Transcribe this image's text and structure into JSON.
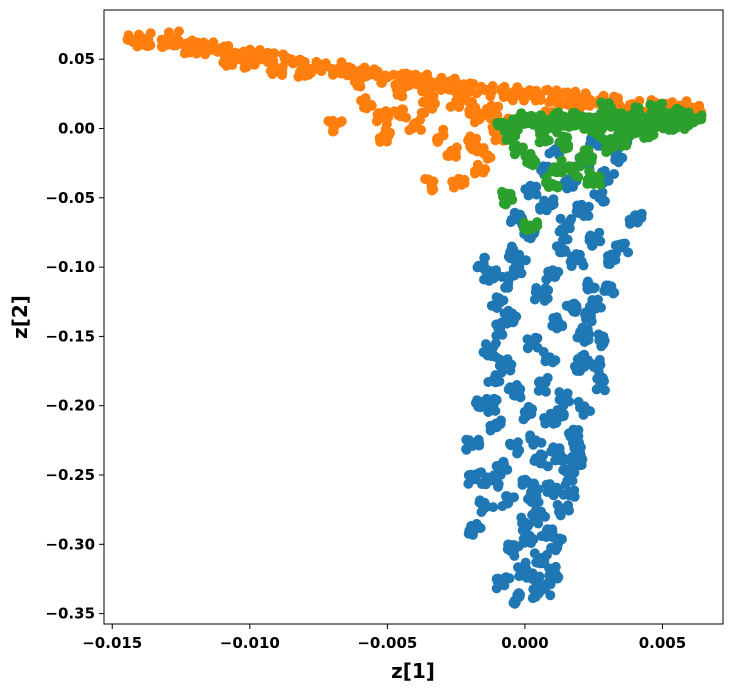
{
  "chart_data": {
    "type": "scatter",
    "title": "",
    "xlabel": "z[1]",
    "ylabel": "z[2]",
    "xlim": [
      -0.0153,
      0.0072
    ],
    "ylim": [
      -0.3575,
      0.0855
    ],
    "xticks": [
      -0.015,
      -0.01,
      -0.005,
      0.0,
      0.005
    ],
    "xtick_labels": [
      "−0.015",
      "−0.010",
      "−0.005",
      "0.000",
      "0.005"
    ],
    "yticks": [
      0.05,
      0.0,
      -0.05,
      -0.1,
      -0.15,
      -0.2,
      -0.25,
      -0.3,
      -0.35
    ],
    "ytick_labels": [
      "0.05",
      "0.00",
      "−0.05",
      "−0.10",
      "−0.15",
      "−0.20",
      "−0.25",
      "−0.30",
      "−0.35"
    ],
    "grid": false,
    "legend": "none",
    "series": [
      {
        "color": "#1f77b4",
        "points": [
          [
            0.0005,
            -0.335
          ],
          [
            0.0007,
            -0.332
          ],
          [
            -0.0002,
            -0.338
          ],
          [
            0.0003,
            -0.325
          ],
          [
            0.001,
            -0.32
          ],
          [
            0.0,
            -0.318
          ],
          [
            0.0006,
            -0.31
          ],
          [
            -0.0004,
            -0.305
          ],
          [
            0.0012,
            -0.3
          ],
          [
            0.0002,
            -0.295
          ],
          [
            0.0008,
            -0.29
          ],
          [
            -0.0001,
            -0.285
          ],
          [
            0.0005,
            -0.28
          ],
          [
            0.0014,
            -0.275
          ],
          [
            -0.0006,
            -0.27
          ],
          [
            0.0003,
            -0.265
          ],
          [
            0.001,
            -0.26
          ],
          [
            0.0001,
            -0.255
          ],
          [
            0.0016,
            -0.25
          ],
          [
            -0.0008,
            -0.245
          ],
          [
            0.0006,
            -0.24
          ],
          [
            0.0012,
            -0.235
          ],
          [
            -0.0003,
            -0.23
          ],
          [
            0.0004,
            -0.225
          ],
          [
            0.0018,
            -0.22
          ],
          [
            -0.001,
            -0.215
          ],
          [
            0.0008,
            -0.21
          ],
          [
            0.0002,
            -0.205
          ],
          [
            -0.0012,
            -0.2
          ],
          [
            0.0015,
            -0.195
          ],
          [
            -0.0004,
            -0.19
          ],
          [
            0.0006,
            -0.185
          ],
          [
            -0.0011,
            -0.18
          ],
          [
            0.002,
            -0.175
          ],
          [
            -0.0007,
            -0.17
          ],
          [
            0.0009,
            -0.165
          ],
          [
            -0.0013,
            -0.16
          ],
          [
            0.0003,
            -0.155
          ],
          [
            0.0022,
            -0.15
          ],
          [
            -0.0009,
            -0.145
          ],
          [
            0.0012,
            -0.14
          ],
          [
            -0.0005,
            -0.135
          ],
          [
            0.0017,
            -0.13
          ],
          [
            -0.001,
            -0.125
          ],
          [
            0.0006,
            -0.12
          ],
          [
            0.0024,
            -0.115
          ],
          [
            -0.0006,
            -0.11
          ],
          [
            0.001,
            -0.105
          ],
          [
            -0.0002,
            -0.1
          ],
          [
            0.0019,
            -0.095
          ],
          [
            -0.0004,
            -0.09
          ],
          [
            0.0013,
            -0.085
          ],
          [
            0.0026,
            -0.08
          ],
          [
            0.0001,
            -0.075
          ],
          [
            0.0015,
            -0.07
          ],
          [
            -0.0003,
            -0.065
          ],
          [
            0.0021,
            -0.06
          ],
          [
            0.0008,
            -0.055
          ],
          [
            0.0027,
            -0.05
          ],
          [
            0.0002,
            -0.045
          ],
          [
            0.0017,
            -0.04
          ],
          [
            0.003,
            -0.035
          ],
          [
            0.0006,
            -0.03
          ],
          [
            0.0022,
            -0.025
          ],
          [
            0.0033,
            -0.02
          ],
          [
            0.0011,
            -0.015
          ],
          [
            0.0026,
            -0.01
          ],
          [
            0.0036,
            -0.005
          ],
          [
            -0.0018,
            -0.289
          ],
          [
            -0.0014,
            -0.273
          ],
          [
            -0.0008,
            -0.328
          ],
          [
            -0.0012,
            -0.254
          ],
          [
            -0.0018,
            -0.253
          ],
          [
            0.0013,
            -0.208
          ],
          [
            0.0022,
            -0.202
          ],
          [
            0.0025,
            -0.172
          ],
          [
            0.0029,
            -0.153
          ],
          [
            0.002,
            -0.167
          ],
          [
            0.0024,
            -0.136
          ],
          [
            0.003,
            -0.117
          ],
          [
            0.0035,
            -0.085
          ],
          [
            0.004,
            -0.065
          ],
          [
            0.0028,
            -0.184
          ],
          [
            -0.0015,
            -0.098
          ],
          [
            -0.0013,
            -0.107
          ],
          [
            -0.0016,
            -0.201
          ],
          [
            -0.0019,
            -0.229
          ],
          [
            0.0018,
            -0.23
          ],
          [
            0.0016,
            -0.262
          ],
          [
            0.0019,
            -0.24
          ],
          [
            0.0021,
            -0.148
          ],
          [
            0.0026,
            -0.128
          ],
          [
            0.0031,
            -0.095
          ]
        ]
      },
      {
        "color": "#ff7f0e",
        "points": [
          [
            -0.0142,
            0.063
          ],
          [
            -0.0138,
            0.064
          ],
          [
            -0.013,
            0.063
          ],
          [
            -0.0128,
            0.065
          ],
          [
            -0.012,
            0.059
          ],
          [
            -0.0115,
            0.058
          ],
          [
            -0.011,
            0.055
          ],
          [
            -0.0104,
            0.054
          ],
          [
            -0.0098,
            0.052
          ],
          [
            -0.0092,
            0.05
          ],
          [
            -0.0086,
            0.049
          ],
          [
            -0.008,
            0.045
          ],
          [
            -0.0074,
            0.046
          ],
          [
            -0.0068,
            0.043
          ],
          [
            -0.0062,
            0.041
          ],
          [
            -0.0056,
            0.039
          ],
          [
            -0.005,
            0.037
          ],
          [
            -0.0044,
            0.035
          ],
          [
            -0.0038,
            0.034
          ],
          [
            -0.0032,
            0.032
          ],
          [
            -0.0026,
            0.031
          ],
          [
            -0.002,
            0.029
          ],
          [
            -0.0014,
            0.028
          ],
          [
            -0.0008,
            0.026
          ],
          [
            -0.0002,
            0.025
          ],
          [
            0.0004,
            0.024
          ],
          [
            0.001,
            0.023
          ],
          [
            0.0016,
            0.022
          ],
          [
            0.0022,
            0.021
          ],
          [
            0.0028,
            0.019
          ],
          [
            0.0034,
            0.018
          ],
          [
            0.004,
            0.017
          ],
          [
            0.0046,
            0.016
          ],
          [
            0.0052,
            0.016
          ],
          [
            0.0058,
            0.015
          ],
          [
            0.0062,
            0.014
          ],
          [
            -0.01,
            0.048
          ],
          [
            -0.006,
            0.035
          ],
          [
            -0.0045,
            0.028
          ],
          [
            -0.0035,
            0.023
          ],
          [
            -0.0025,
            0.02
          ],
          [
            -0.0018,
            0.015
          ],
          [
            -0.0012,
            0.012
          ],
          [
            -0.0058,
            0.018
          ],
          [
            -0.0052,
            0.008
          ],
          [
            -0.0069,
            0.002
          ],
          [
            -0.0051,
            -0.005
          ],
          [
            -0.004,
            0.003
          ],
          [
            -0.0034,
            -0.041
          ],
          [
            -0.0024,
            -0.039
          ],
          [
            -0.0026,
            -0.016
          ],
          [
            -0.003,
            -0.005
          ],
          [
            -0.002,
            -0.01
          ],
          [
            -0.0018,
            0.008
          ],
          [
            -0.0015,
            -0.018
          ],
          [
            -0.001,
            -0.004
          ],
          [
            -0.0005,
            0.005
          ],
          [
            -0.0016,
            -0.03
          ],
          [
            -0.0035,
            0.015
          ],
          [
            -0.0045,
            0.012
          ],
          [
            0.0008,
            0.01
          ],
          [
            0.002,
            0.015
          ],
          [
            0.0035,
            0.012
          ],
          [
            0.005,
            0.013
          ],
          [
            -0.008,
            0.038
          ],
          [
            -0.009,
            0.042
          ],
          [
            -0.0122,
            0.058
          ],
          [
            -0.0108,
            0.05
          ]
        ]
      },
      {
        "color": "#2ca02c",
        "points": [
          [
            -0.0002,
            0.008
          ],
          [
            0.0004,
            0.007
          ],
          [
            0.001,
            0.008
          ],
          [
            0.0016,
            0.007
          ],
          [
            0.0022,
            0.008
          ],
          [
            0.0028,
            0.006
          ],
          [
            0.0034,
            0.007
          ],
          [
            0.004,
            0.006
          ],
          [
            0.0046,
            0.007
          ],
          [
            0.0052,
            0.008
          ],
          [
            0.0058,
            0.007
          ],
          [
            0.0062,
            0.006
          ],
          [
            0.0002,
            0.004
          ],
          [
            0.0008,
            0.003
          ],
          [
            0.0014,
            0.002
          ],
          [
            0.002,
            0.003
          ],
          [
            0.0026,
            0.001
          ],
          [
            0.0032,
            0.004
          ],
          [
            0.0038,
            0.002
          ],
          [
            0.0044,
            0.001
          ],
          [
            0.005,
            0.002
          ],
          [
            0.0056,
            0.003
          ],
          [
            0.003,
            0.014
          ],
          [
            0.004,
            0.011
          ],
          [
            0.0055,
            0.01
          ],
          [
            0.0048,
            0.014
          ],
          [
            -0.0008,
            0.001
          ],
          [
            -0.0005,
            -0.005
          ],
          [
            -0.0002,
            -0.015
          ],
          [
            0.0003,
            -0.022
          ],
          [
            -0.0006,
            -0.05
          ],
          [
            0.0002,
            -0.07
          ],
          [
            0.001,
            -0.04
          ],
          [
            0.0012,
            -0.028
          ],
          [
            0.0018,
            -0.03
          ],
          [
            0.0025,
            -0.036
          ],
          [
            0.0022,
            -0.02
          ],
          [
            0.003,
            -0.012
          ],
          [
            0.0035,
            -0.008
          ],
          [
            0.0045,
            -0.002
          ],
          [
            0.0015,
            -0.01
          ],
          [
            0.0007,
            -0.005
          ],
          [
            0.0038,
            0.0
          ],
          [
            0.006,
            0.005
          ],
          [
            0.0026,
            -0.004
          ]
        ]
      }
    ]
  }
}
